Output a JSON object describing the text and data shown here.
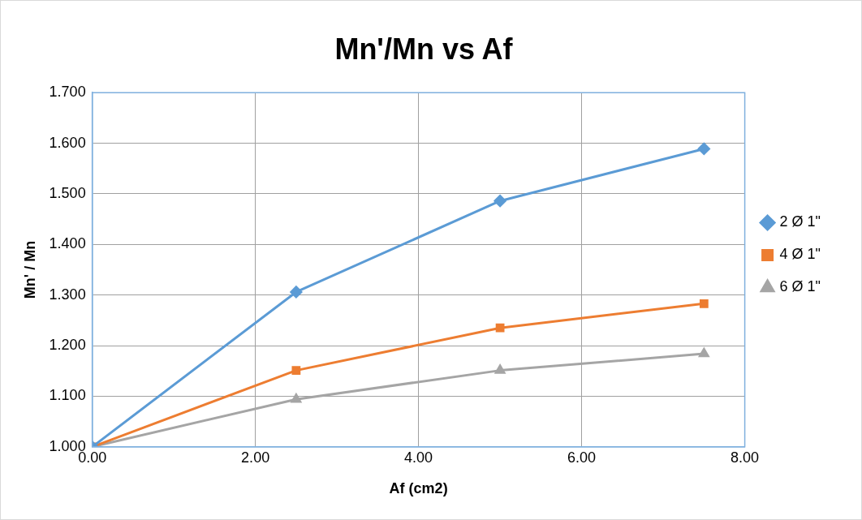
{
  "chart_data": {
    "type": "line",
    "title": "Mn'/Mn vs Af",
    "xlabel": "Af (cm2)",
    "ylabel": "Mn' / Mn",
    "x": [
      0,
      2.5,
      5,
      7.5
    ],
    "series": [
      {
        "name": "2 Ø 1\"",
        "color": "#5b9bd5",
        "marker": "diamond",
        "values": [
          1.0,
          1.306,
          1.486,
          1.589
        ]
      },
      {
        "name": "4 Ø 1\"",
        "color": "#ed7d31",
        "marker": "square",
        "values": [
          1.0,
          1.151,
          1.235,
          1.283
        ]
      },
      {
        "name": "6 Ø 1\"",
        "color": "#a5a5a5",
        "marker": "triangle",
        "values": [
          1.0,
          1.094,
          1.151,
          1.184
        ]
      }
    ],
    "xlim": [
      0,
      8
    ],
    "xticks": [
      {
        "value": 0,
        "label": "0.00"
      },
      {
        "value": 2,
        "label": "2.00"
      },
      {
        "value": 4,
        "label": "4.00"
      },
      {
        "value": 6,
        "label": "6.00"
      },
      {
        "value": 8,
        "label": "8.00"
      }
    ],
    "ylim": [
      1,
      1.7
    ],
    "yticks": [
      {
        "value": 1,
        "label": "1.000"
      },
      {
        "value": 1.1,
        "label": "1.100"
      },
      {
        "value": 1.2,
        "label": "1.200"
      },
      {
        "value": 1.3,
        "label": "1.300"
      },
      {
        "value": 1.4,
        "label": "1.400"
      },
      {
        "value": 1.5,
        "label": "1.500"
      },
      {
        "value": 1.6,
        "label": "1.600"
      },
      {
        "value": 1.7,
        "label": "1.700"
      }
    ],
    "grid": true,
    "legend": "right",
    "line_style": "solid"
  }
}
